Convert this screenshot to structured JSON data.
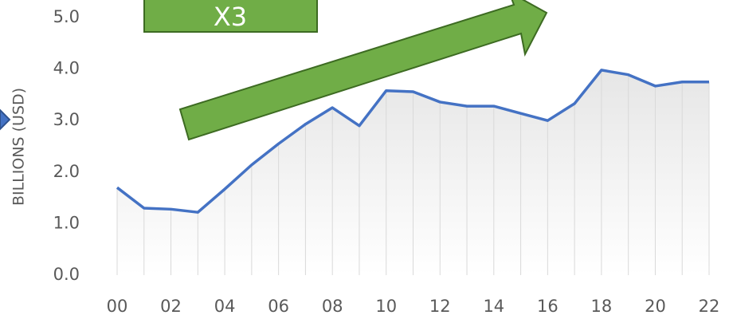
{
  "chart_data": {
    "type": "line",
    "y_axis_label": "BILLIONS (USD)",
    "annotation": "X3",
    "categories": [
      "00",
      null,
      "02",
      null,
      "04",
      null,
      "06",
      null,
      "08",
      null,
      "10",
      null,
      "12",
      null,
      "14",
      null,
      "16",
      null,
      "18",
      null,
      "20",
      null,
      "22"
    ],
    "series": [
      {
        "name": null,
        "color": "#4472c4",
        "values": [
          1.7,
          1.3,
          1.28,
          1.22,
          1.67,
          2.14,
          2.55,
          2.93,
          3.25,
          2.9,
          3.58,
          3.56,
          3.36,
          3.28,
          3.28,
          3.14,
          3.0,
          3.33,
          3.98,
          3.89,
          3.67,
          3.75,
          3.75
        ]
      }
    ],
    "ylim": [
      0,
      5
    ],
    "yticks": [
      {
        "value": 0,
        "label": "0.0"
      },
      {
        "value": 1,
        "label": "1.0"
      },
      {
        "value": 2,
        "label": "2.0"
      },
      {
        "value": 3,
        "label": "3.0"
      },
      {
        "value": 4,
        "label": "4.0"
      },
      {
        "value": 5,
        "label": "5.0"
      }
    ],
    "drop_lines": true
  }
}
